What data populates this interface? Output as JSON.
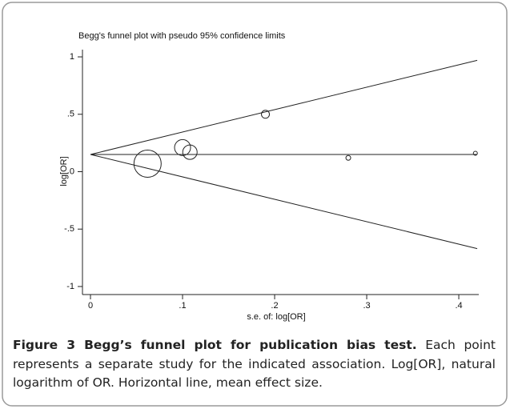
{
  "chart_data": {
    "type": "scatter",
    "title": "Begg's funnel plot with pseudo 95% confidence limits",
    "x_label": "s.e. of: log[OR]",
    "y_label": "log[OR]",
    "x": [
      0.062,
      0.1,
      0.108,
      0.19,
      0.28,
      0.418
    ],
    "values": [
      0.07,
      0.21,
      0.17,
      0.5,
      0.12,
      0.16
    ],
    "sizes": [
      17,
      10,
      9,
      5,
      3,
      2.5
    ],
    "color": "#222222",
    "reference_lines": [
      {
        "x": [
          0,
          0.42
        ],
        "y": [
          0.15,
          0.97
        ]
      },
      {
        "x": [
          0,
          0.42
        ],
        "y": [
          0.15,
          0.15
        ]
      },
      {
        "x": [
          0,
          0.42
        ],
        "y": [
          0.15,
          -0.67
        ]
      }
    ],
    "xlim": [
      -0.0087,
      0.4217
    ],
    "ylim": [
      -1.07,
      1.063
    ],
    "xticks": [
      0,
      {
        "value": 0.1,
        "label": ".1"
      },
      {
        "value": 0.2,
        "label": ".2"
      },
      {
        "value": 0.3,
        "label": ".3"
      },
      {
        "value": 0.4,
        "label": ".4"
      }
    ],
    "yticks": [
      1,
      {
        "value": 0.5,
        "label": ".5"
      },
      0,
      {
        "value": -0.5,
        "label": "-.5"
      },
      -1
    ],
    "grid": false
  },
  "caption": {
    "title": "Figure 3 Begg’s funnel plot for publication bias test.",
    "text": "Each point represents a separate study for the indicated association. Log[OR], natural logarithm of OR. Horizontal line, mean effect size."
  }
}
